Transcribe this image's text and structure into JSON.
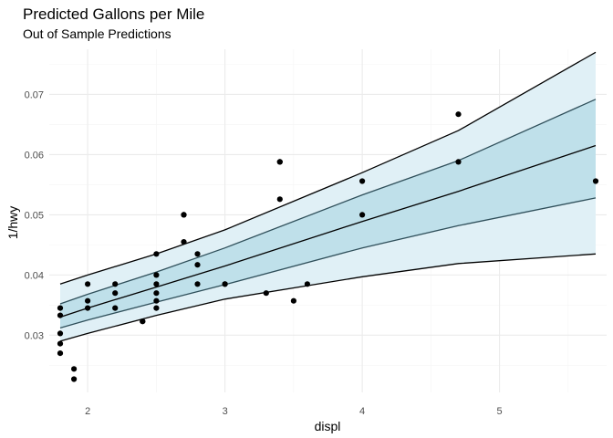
{
  "chart_data": {
    "type": "scatter",
    "title": "Predicted Gallons per Mile",
    "subtitle": "Out of Sample Predictions",
    "xlabel": "displ",
    "ylabel": "1/hwy",
    "xlim": [
      1.72,
      5.78
    ],
    "ylim": [
      0.0205,
      0.0775
    ],
    "xticks": [
      2,
      3,
      4,
      5
    ],
    "yticks": [
      0.03,
      0.04,
      0.05,
      0.06,
      0.07
    ],
    "ytick_labels": [
      "0.03",
      "0.04",
      "0.05",
      "0.06",
      "0.07"
    ],
    "grid": true,
    "bands": {
      "x": [
        1.8,
        2.0,
        2.5,
        3.0,
        4.0,
        4.7,
        5.7
      ],
      "outer_lower": [
        0.029,
        0.0303,
        0.0333,
        0.036,
        0.0397,
        0.0419,
        0.0435
      ],
      "outer_upper": [
        0.0385,
        0.04,
        0.0435,
        0.0475,
        0.057,
        0.064,
        0.077
      ],
      "inner_lower": [
        0.0312,
        0.0325,
        0.0355,
        0.0384,
        0.0445,
        0.0482,
        0.0528
      ],
      "inner_upper": [
        0.0352,
        0.0368,
        0.0405,
        0.0445,
        0.0533,
        0.059,
        0.0692
      ],
      "fit": [
        0.033,
        0.0345,
        0.038,
        0.0415,
        0.0489,
        0.0539,
        0.0615
      ]
    },
    "points": [
      {
        "x": 1.8,
        "y": 0.0345
      },
      {
        "x": 1.8,
        "y": 0.0333
      },
      {
        "x": 1.8,
        "y": 0.0303
      },
      {
        "x": 1.8,
        "y": 0.0286
      },
      {
        "x": 1.8,
        "y": 0.027
      },
      {
        "x": 1.9,
        "y": 0.0244
      },
      {
        "x": 1.9,
        "y": 0.0227
      },
      {
        "x": 2.0,
        "y": 0.0385
      },
      {
        "x": 2.0,
        "y": 0.0357
      },
      {
        "x": 2.0,
        "y": 0.0345
      },
      {
        "x": 2.2,
        "y": 0.0385
      },
      {
        "x": 2.2,
        "y": 0.037
      },
      {
        "x": 2.2,
        "y": 0.0345
      },
      {
        "x": 2.4,
        "y": 0.0323
      },
      {
        "x": 2.4,
        "y": 0.0323
      },
      {
        "x": 2.5,
        "y": 0.0435
      },
      {
        "x": 2.5,
        "y": 0.04
      },
      {
        "x": 2.5,
        "y": 0.0385
      },
      {
        "x": 2.5,
        "y": 0.037
      },
      {
        "x": 2.5,
        "y": 0.0357
      },
      {
        "x": 2.5,
        "y": 0.0345
      },
      {
        "x": 2.7,
        "y": 0.05
      },
      {
        "x": 2.7,
        "y": 0.05
      },
      {
        "x": 2.7,
        "y": 0.0455
      },
      {
        "x": 2.8,
        "y": 0.0435
      },
      {
        "x": 2.8,
        "y": 0.0417
      },
      {
        "x": 2.8,
        "y": 0.0385
      },
      {
        "x": 3.0,
        "y": 0.0385
      },
      {
        "x": 3.0,
        "y": 0.0385
      },
      {
        "x": 3.3,
        "y": 0.037
      },
      {
        "x": 3.4,
        "y": 0.0588
      },
      {
        "x": 3.4,
        "y": 0.0588
      },
      {
        "x": 3.4,
        "y": 0.0526
      },
      {
        "x": 3.5,
        "y": 0.0357
      },
      {
        "x": 3.6,
        "y": 0.0385
      },
      {
        "x": 4.0,
        "y": 0.0556
      },
      {
        "x": 4.0,
        "y": 0.05
      },
      {
        "x": 4.7,
        "y": 0.0667
      },
      {
        "x": 4.7,
        "y": 0.0588
      },
      {
        "x": 5.7,
        "y": 0.0556
      }
    ],
    "colors": {
      "outer_band": "#e0f0f6",
      "inner_band": "#bfe0ea",
      "fit_line": "#000000",
      "outer_line": "#000000",
      "inner_line": "#2f4f5a",
      "points": "#000000",
      "grid_major": "#ebebeb",
      "grid_minor": "#f5f5f5"
    }
  }
}
